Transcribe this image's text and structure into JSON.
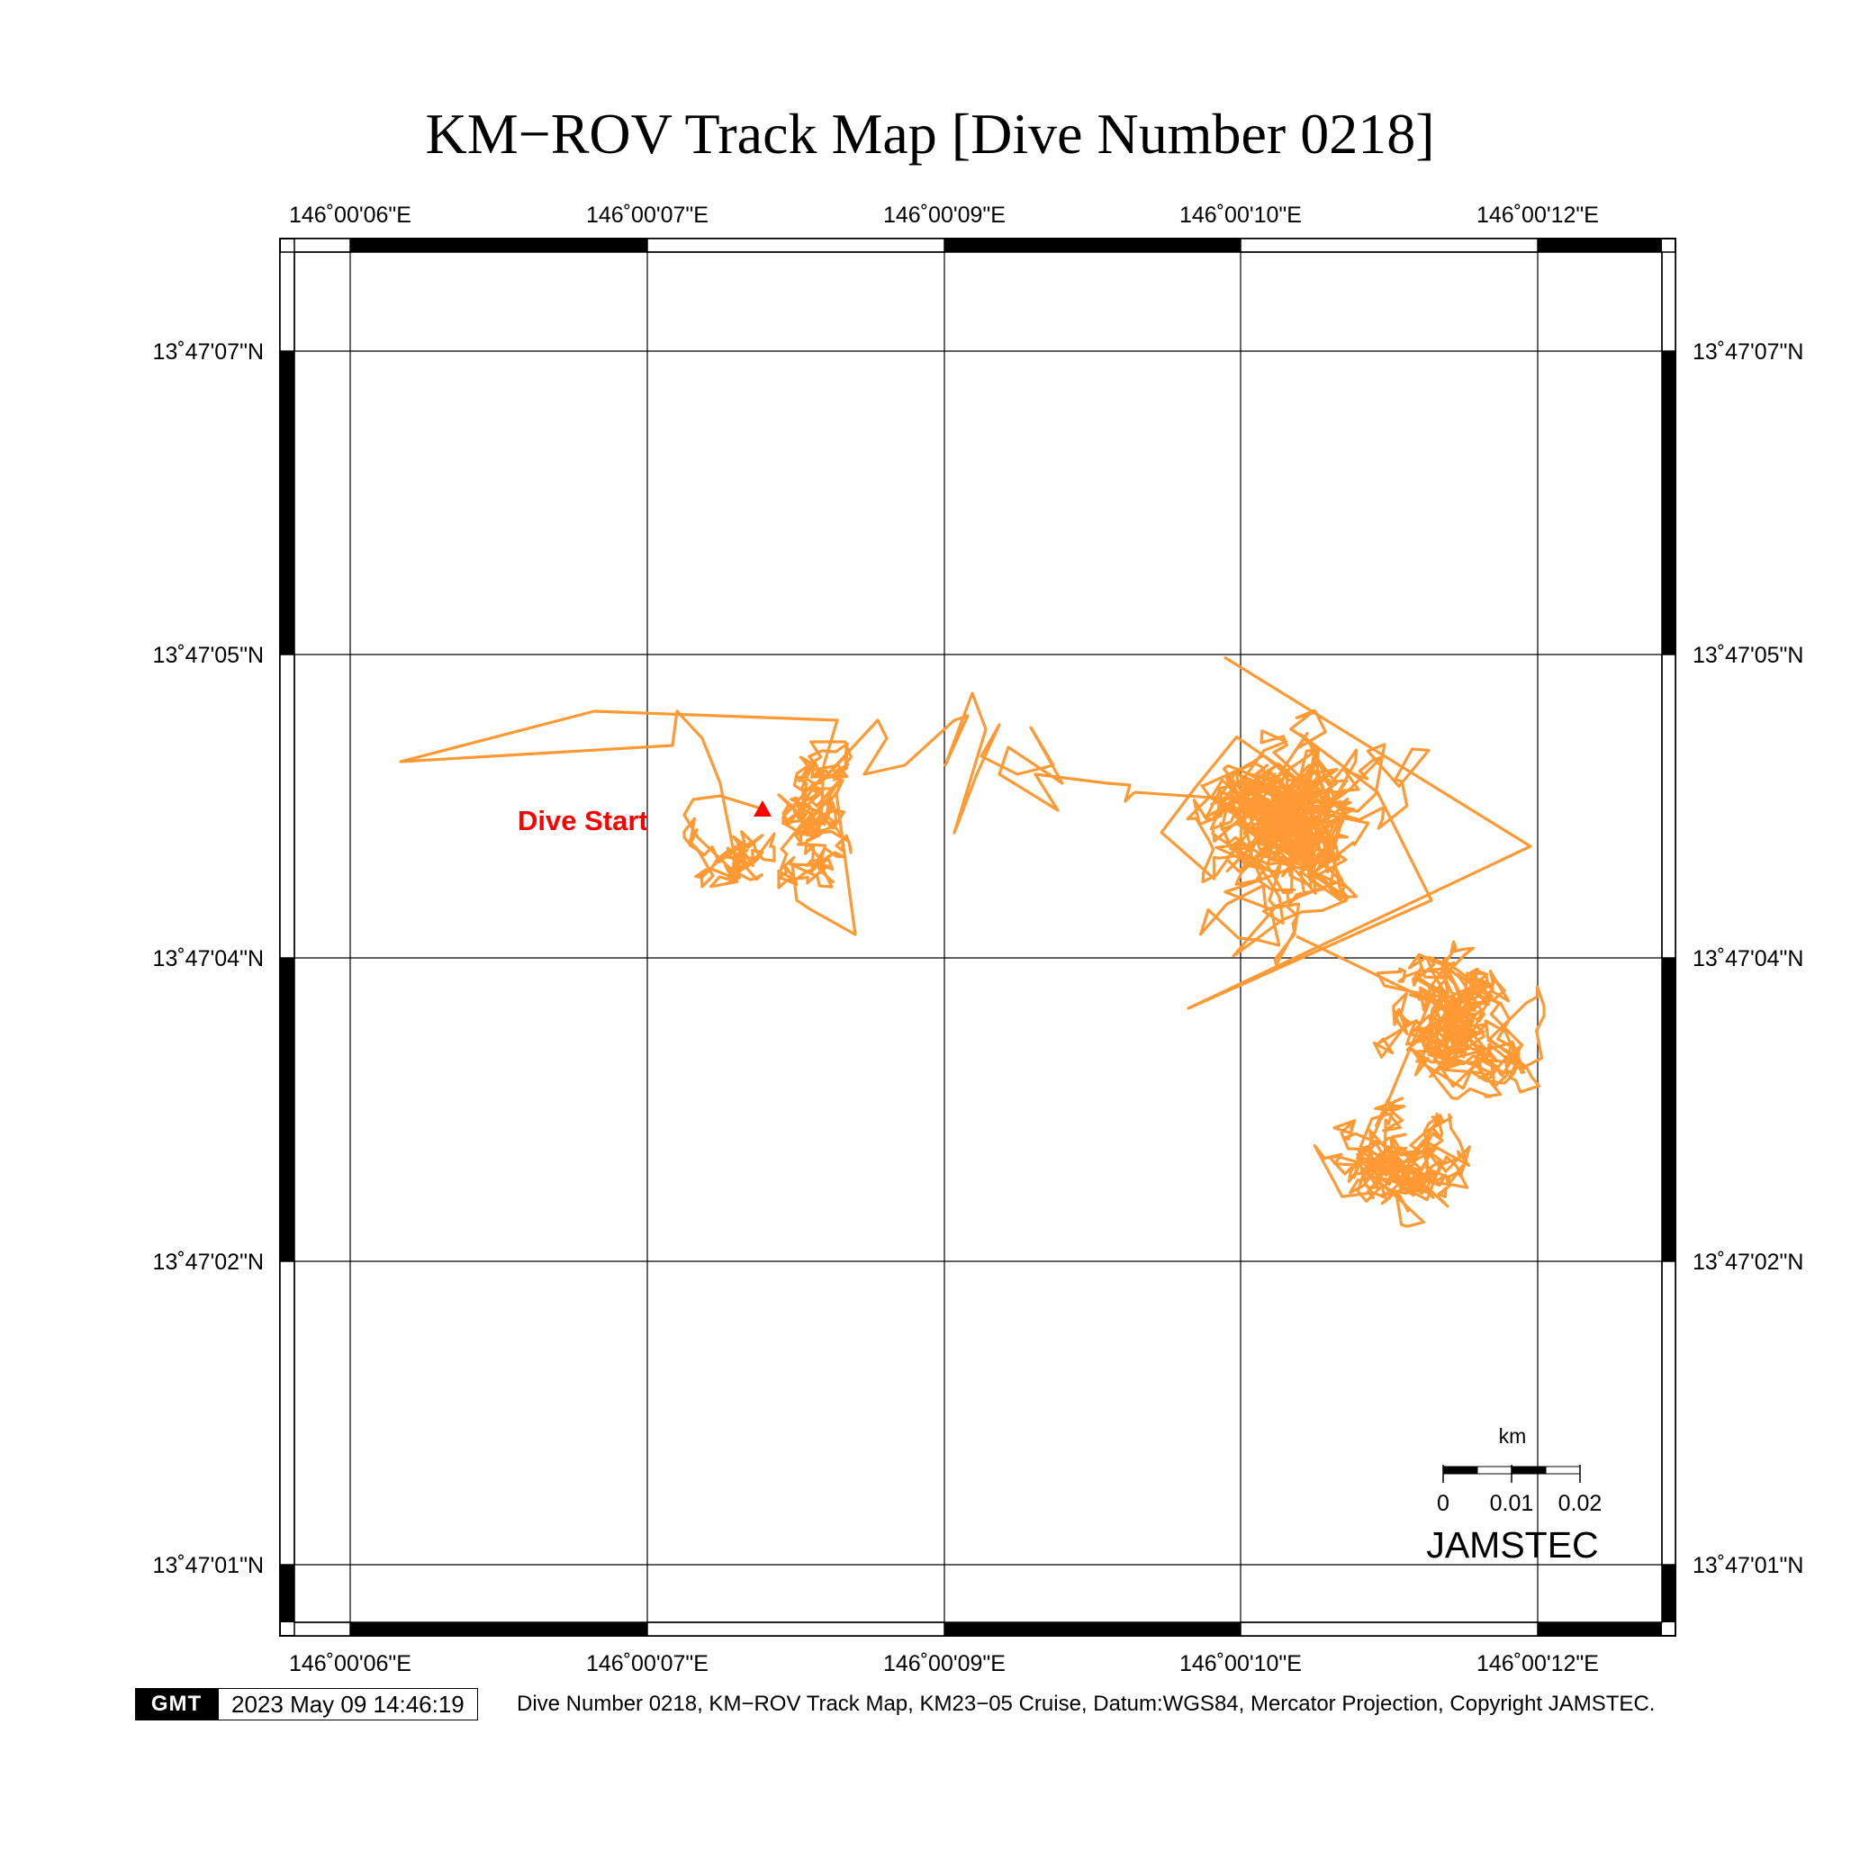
{
  "title": "KM−ROV Track Map [Dive Number 0218]",
  "map": {
    "lon_ticks": [
      "146˚00'06\"E",
      "146˚00'07\"E",
      "146˚00'09\"E",
      "146˚00'10\"E",
      "146˚00'12\"E"
    ],
    "lat_ticks": [
      "13˚47'07\"N",
      "13˚47'05\"N",
      "13˚47'04\"N",
      "13˚47'02\"N",
      "13˚47'01\"N"
    ],
    "track_color": "#FF9933",
    "start_color": "#FF0000",
    "start_label": "Dive Start",
    "projection": "Mercator",
    "datum": "WGS84"
  },
  "scale_bar": {
    "unit": "km",
    "labels": [
      "0",
      "0.01",
      "0.02"
    ]
  },
  "credit": "JAMSTEC",
  "footer": {
    "logo": "GMT",
    "timestamp": "2023 May 09 14:46:19",
    "caption": "Dive Number 0218, KM−ROV Track Map, KM23−05 Cruise, Datum:WGS84, Mercator Projection, Copyright JAMSTEC."
  }
}
